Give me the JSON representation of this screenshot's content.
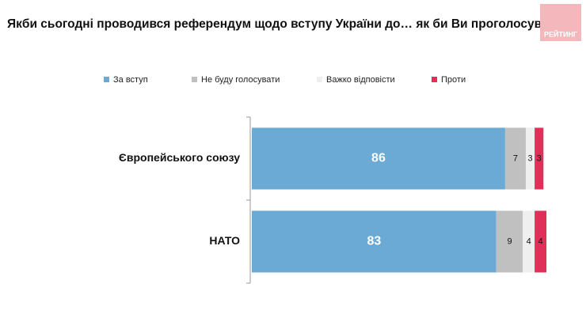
{
  "chart_data": {
    "type": "stacked-bar",
    "orientation": "horizontal",
    "title": "Якби сьогодні проводився референдум щодо вступу України до… як би Ви проголосували?",
    "categories": [
      "Європейського союзу",
      "НАТО"
    ],
    "series": [
      {
        "name": "За вступ",
        "color": "#6aaad4",
        "values": [
          86,
          83
        ]
      },
      {
        "name": "Не буду голосувати",
        "color": "#c0c0c0",
        "values": [
          7,
          9
        ]
      },
      {
        "name": "Важко відповісти",
        "color": "#efefef",
        "values": [
          3,
          4
        ]
      },
      {
        "name": "Проти",
        "color": "#e0305a",
        "values": [
          3,
          4
        ]
      }
    ],
    "xlim": [
      0,
      100
    ],
    "legend": "top"
  },
  "logo": "РЕЙТИНГ"
}
